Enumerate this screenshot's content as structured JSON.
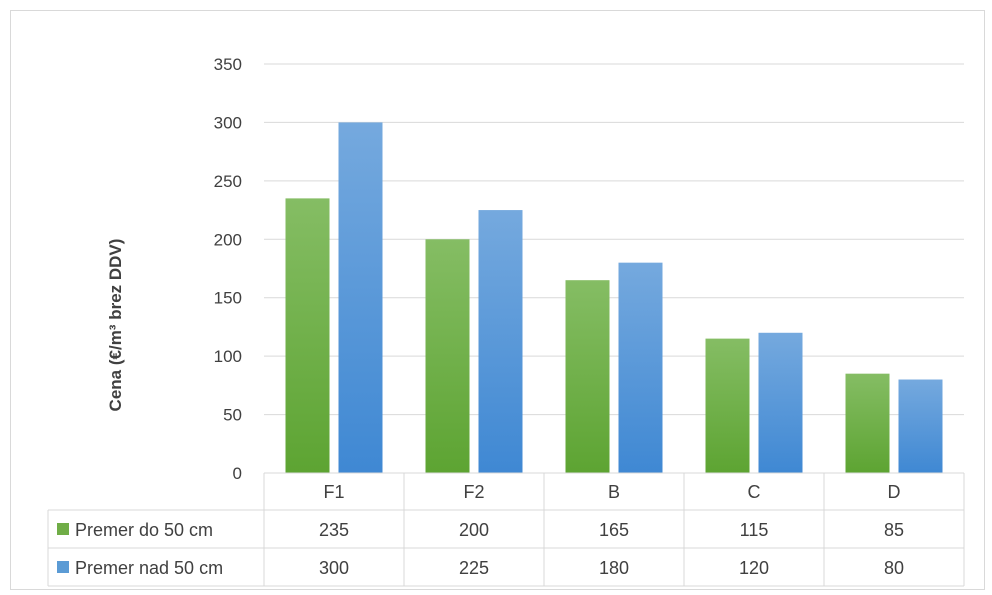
{
  "chart_data": {
    "type": "bar",
    "title": "",
    "xlabel": "",
    "ylabel": "Cena (€/m³ brez DDV)",
    "ylim": [
      0,
      350
    ],
    "yticks": [
      0,
      50,
      100,
      150,
      200,
      250,
      300,
      350
    ],
    "grid": true,
    "legend": "data-table-left",
    "categories": [
      "F1",
      "F2",
      "B",
      "C",
      "D"
    ],
    "series": [
      {
        "name": "Premer do 50 cm",
        "values": [
          235,
          200,
          165,
          115,
          85
        ],
        "color": "#70ad47"
      },
      {
        "name": "Premer nad 50 cm",
        "values": [
          300,
          225,
          180,
          120,
          80
        ],
        "color": "#5b9bd5"
      }
    ]
  }
}
